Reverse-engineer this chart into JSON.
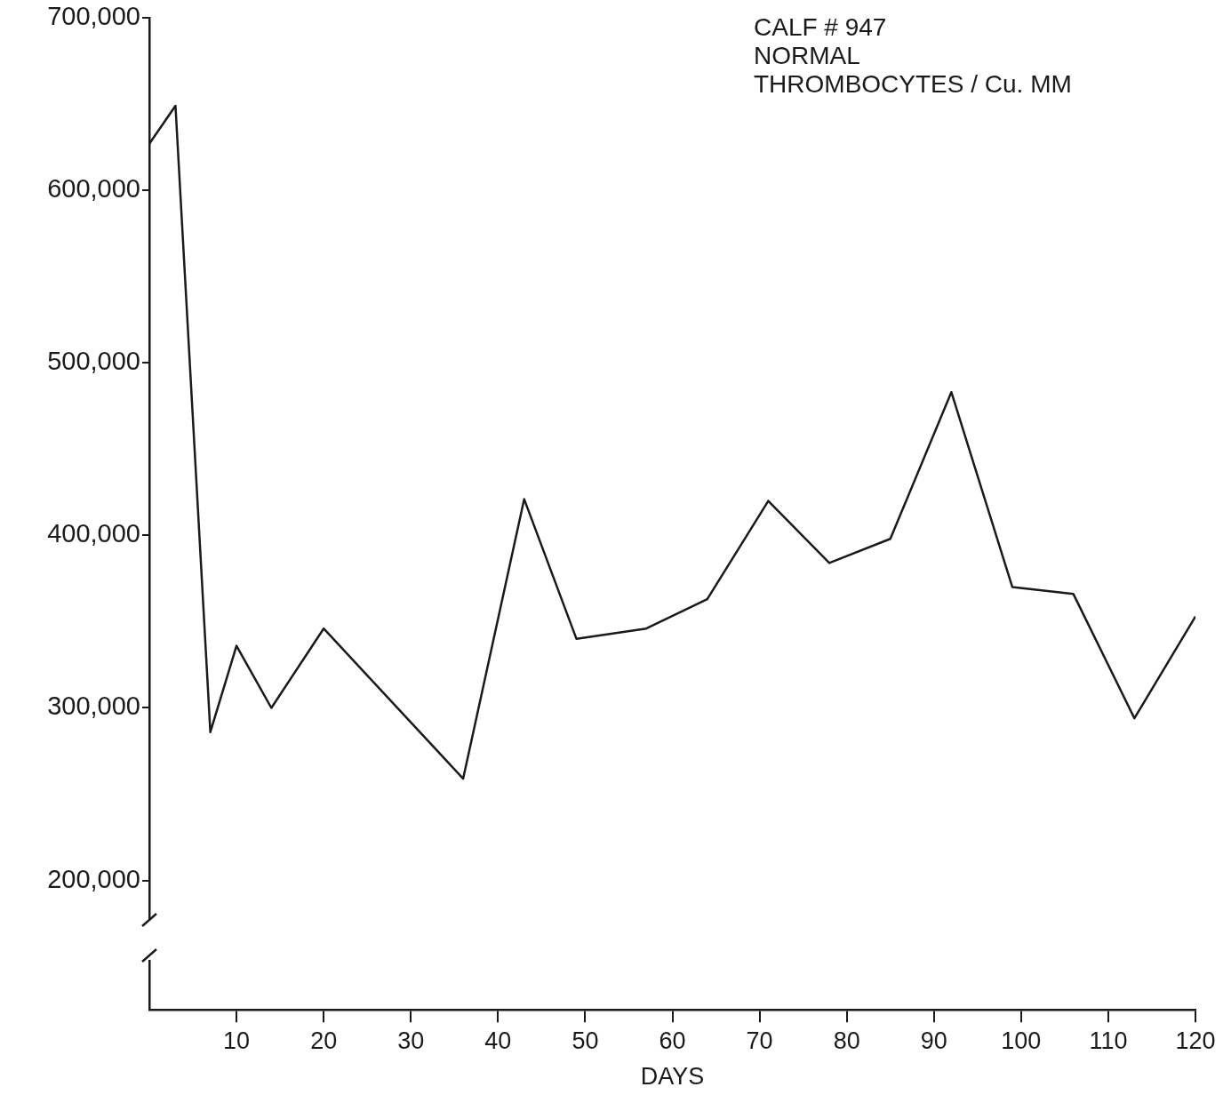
{
  "chart_data": {
    "type": "line",
    "xlabel": "DAYS",
    "annotations": [
      "CALF # 947",
      "NORMAL",
      "THROMBOCYTES / Cu. MM"
    ],
    "x": [
      0,
      3,
      7,
      10,
      14,
      20,
      36,
      43,
      49,
      57,
      64,
      71,
      78,
      85,
      92,
      99,
      106,
      113,
      120
    ],
    "series": [
      {
        "color": "#1a1a1a",
        "values": [
          627000,
          649000,
          286000,
          336000,
          300000,
          346000,
          259000,
          421000,
          340000,
          346000,
          363000,
          420000,
          384000,
          398000,
          483000,
          370000,
          366000,
          294000,
          353000
        ]
      }
    ],
    "xlim": [
      0,
      120
    ],
    "xticks": [
      10,
      20,
      30,
      40,
      50,
      60,
      70,
      80,
      90,
      100,
      110,
      120
    ],
    "ylim": [
      125000,
      700000
    ],
    "yticks": [
      {
        "value": 200000,
        "label": "200,000"
      },
      {
        "value": 300000,
        "label": "300,000"
      },
      {
        "value": 400000,
        "label": "400,000"
      },
      {
        "value": 500000,
        "label": "500,000"
      },
      {
        "value": 600000,
        "label": "600,000"
      },
      {
        "value": 700000,
        "label": "700,000"
      }
    ],
    "grid": false,
    "legend": false,
    "marker": "none",
    "line_style": "solid"
  }
}
